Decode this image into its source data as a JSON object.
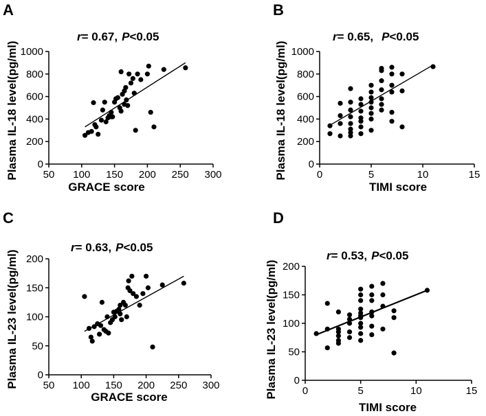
{
  "chart_data": [
    {
      "type": "scatter",
      "panel": "A",
      "stat_r": "r",
      "stat_r_value": "= 0.67,",
      "stat_p": "P",
      "stat_p_value": "<0.05",
      "xlabel": "GRACE score",
      "ylabel": "Plasma IL-18 level(pg/ml)",
      "xlim": [
        50,
        300
      ],
      "ylim": [
        0,
        1000
      ],
      "xticks": [
        50,
        100,
        150,
        200,
        250,
        300
      ],
      "yticks": [
        0,
        200,
        400,
        600,
        800,
        1000
      ],
      "fit": [
        [
          105,
          330
        ],
        [
          258,
          900
        ]
      ],
      "points": [
        [
          105,
          255
        ],
        [
          110,
          280
        ],
        [
          115,
          290
        ],
        [
          118,
          545
        ],
        [
          120,
          350
        ],
        [
          122,
          330
        ],
        [
          125,
          265
        ],
        [
          130,
          390
        ],
        [
          132,
          480
        ],
        [
          135,
          550
        ],
        [
          137,
          375
        ],
        [
          140,
          410
        ],
        [
          142,
          430
        ],
        [
          145,
          460
        ],
        [
          145,
          420
        ],
        [
          147,
          420
        ],
        [
          150,
          550
        ],
        [
          152,
          580
        ],
        [
          155,
          590
        ],
        [
          158,
          500
        ],
        [
          160,
          820
        ],
        [
          160,
          470
        ],
        [
          162,
          620
        ],
        [
          165,
          650
        ],
        [
          165,
          530
        ],
        [
          167,
          680
        ],
        [
          168,
          570
        ],
        [
          170,
          520
        ],
        [
          172,
          800
        ],
        [
          175,
          720
        ],
        [
          178,
          760
        ],
        [
          180,
          630
        ],
        [
          182,
          300
        ],
        [
          185,
          800
        ],
        [
          190,
          750
        ],
        [
          200,
          800
        ],
        [
          202,
          870
        ],
        [
          205,
          460
        ],
        [
          210,
          330
        ],
        [
          225,
          840
        ],
        [
          258,
          855
        ]
      ]
    },
    {
      "type": "scatter",
      "panel": "B",
      "stat_r": "r",
      "stat_r_value": "= 0.65,",
      "stat_p": "P",
      "stat_p_value": "<0.05",
      "xlabel": "TIMI score",
      "ylabel": "Plasma IL-18 level(pg/ml)",
      "xlim": [
        0,
        15
      ],
      "ylim": [
        0,
        1000
      ],
      "xticks": [
        0,
        5,
        10,
        15
      ],
      "yticks": [
        0,
        200,
        400,
        600,
        800,
        1000
      ],
      "fit": [
        [
          1,
          345
        ],
        [
          11,
          880
        ]
      ],
      "points": [
        [
          1,
          270
        ],
        [
          1,
          340
        ],
        [
          2,
          250
        ],
        [
          2,
          360
        ],
        [
          2,
          430
        ],
        [
          2,
          540
        ],
        [
          3,
          250
        ],
        [
          3,
          280
        ],
        [
          3,
          310
        ],
        [
          3,
          360
        ],
        [
          3,
          420
        ],
        [
          3,
          480
        ],
        [
          3,
          550
        ],
        [
          3,
          670
        ],
        [
          4,
          270
        ],
        [
          4,
          330
        ],
        [
          4,
          380
        ],
        [
          4,
          410
        ],
        [
          4,
          470
        ],
        [
          4,
          530
        ],
        [
          4,
          580
        ],
        [
          5,
          300
        ],
        [
          5,
          400
        ],
        [
          5,
          450
        ],
        [
          5,
          500
        ],
        [
          5,
          550
        ],
        [
          5,
          590
        ],
        [
          5,
          640
        ],
        [
          5,
          700
        ],
        [
          6,
          480
        ],
        [
          6,
          530
        ],
        [
          6,
          580
        ],
        [
          6,
          660
        ],
        [
          6,
          740
        ],
        [
          6,
          830
        ],
        [
          6,
          850
        ],
        [
          7,
          380
        ],
        [
          7,
          460
        ],
        [
          7,
          640
        ],
        [
          7,
          700
        ],
        [
          7,
          800
        ],
        [
          7,
          860
        ],
        [
          8,
          330
        ],
        [
          8,
          650
        ],
        [
          8,
          800
        ],
        [
          11,
          865
        ]
      ]
    },
    {
      "type": "scatter",
      "panel": "C",
      "stat_r": "r",
      "stat_r_value": "= 0.63,",
      "stat_p": "P",
      "stat_p_value": "<0.05",
      "xlabel": "GRACE score",
      "ylabel": "Plasma IL-23 level(pg/ml)",
      "xlim": [
        50,
        300
      ],
      "ylim": [
        0,
        200
      ],
      "xticks": [
        50,
        100,
        150,
        200,
        250,
        300
      ],
      "yticks": [
        0,
        50,
        100,
        150,
        200
      ],
      "fit": [
        [
          105,
          75
        ],
        [
          258,
          170
        ]
      ],
      "points": [
        [
          105,
          135
        ],
        [
          112,
          80
        ],
        [
          115,
          65
        ],
        [
          117,
          58
        ],
        [
          120,
          83
        ],
        [
          125,
          88
        ],
        [
          128,
          70
        ],
        [
          130,
          85
        ],
        [
          132,
          125
        ],
        [
          135,
          78
        ],
        [
          138,
          75
        ],
        [
          140,
          100
        ],
        [
          142,
          72
        ],
        [
          145,
          90
        ],
        [
          148,
          95
        ],
        [
          150,
          108
        ],
        [
          152,
          100
        ],
        [
          155,
          110
        ],
        [
          158,
          113
        ],
        [
          160,
          120
        ],
        [
          160,
          105
        ],
        [
          162,
          95
        ],
        [
          165,
          125
        ],
        [
          168,
          120
        ],
        [
          170,
          100
        ],
        [
          172,
          150
        ],
        [
          173,
          162
        ],
        [
          175,
          145
        ],
        [
          178,
          170
        ],
        [
          180,
          140
        ],
        [
          185,
          135
        ],
        [
          190,
          120
        ],
        [
          195,
          140
        ],
        [
          200,
          170
        ],
        [
          203,
          150
        ],
        [
          210,
          48
        ],
        [
          225,
          155
        ],
        [
          258,
          158
        ]
      ]
    },
    {
      "type": "scatter",
      "panel": "D",
      "stat_r": "r",
      "stat_r_value": "= 0.53,",
      "stat_p": "P",
      "stat_p_value": "<0.05",
      "xlabel": "TIMI score",
      "ylabel": "Plasma IL-23 level(pg/ml)",
      "xlim": [
        0,
        15
      ],
      "ylim": [
        0,
        200
      ],
      "xticks": [
        0,
        5,
        10,
        15
      ],
      "yticks": [
        0,
        50,
        100,
        150,
        200
      ],
      "fit": [
        [
          1,
          80
        ],
        [
          11,
          158
        ]
      ],
      "points": [
        [
          1,
          82
        ],
        [
          2,
          57
        ],
        [
          2,
          90
        ],
        [
          2,
          135
        ],
        [
          3,
          65
        ],
        [
          3,
          70
        ],
        [
          3,
          78
        ],
        [
          3,
          85
        ],
        [
          3,
          90
        ],
        [
          3,
          120
        ],
        [
          4,
          75
        ],
        [
          4,
          85
        ],
        [
          4,
          100
        ],
        [
          4,
          107
        ],
        [
          4,
          115
        ],
        [
          5,
          70
        ],
        [
          5,
          82
        ],
        [
          5,
          93
        ],
        [
          5,
          100
        ],
        [
          5,
          110
        ],
        [
          5,
          113
        ],
        [
          5,
          118
        ],
        [
          5,
          125
        ],
        [
          5,
          140
        ],
        [
          5,
          150
        ],
        [
          5,
          160
        ],
        [
          6,
          80
        ],
        [
          6,
          95
        ],
        [
          6,
          113
        ],
        [
          6,
          120
        ],
        [
          6,
          140
        ],
        [
          6,
          150
        ],
        [
          6,
          165
        ],
        [
          7,
          90
        ],
        [
          7,
          130
        ],
        [
          7,
          150
        ],
        [
          7,
          170
        ],
        [
          8,
          48
        ],
        [
          8,
          110
        ],
        [
          8,
          122
        ],
        [
          11,
          158
        ]
      ]
    }
  ]
}
